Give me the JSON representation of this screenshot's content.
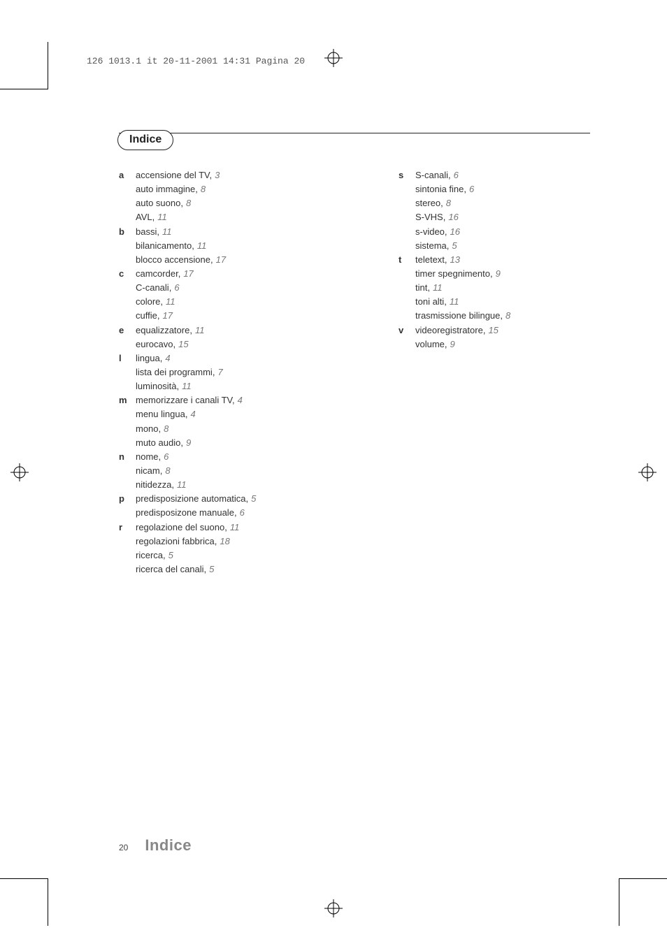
{
  "meta_header": "126 1013.1 it  20-11-2001 14:31  Pagina 20",
  "title": "Indice",
  "footer": {
    "page_number": "20",
    "section": "Indice"
  },
  "index": {
    "left": [
      {
        "letter": "a",
        "entries": [
          {
            "term": "accensione del TV",
            "page": "3"
          },
          {
            "term": "auto immagine",
            "page": "8"
          },
          {
            "term": "auto suono",
            "page": "8"
          },
          {
            "term": "AVL",
            "page": "11"
          }
        ]
      },
      {
        "letter": "b",
        "entries": [
          {
            "term": "bassi",
            "page": "11"
          },
          {
            "term": "bilanicamento",
            "page": "11"
          },
          {
            "term": "blocco accensione",
            "page": "17"
          }
        ]
      },
      {
        "letter": "c",
        "entries": [
          {
            "term": "camcorder",
            "page": "17"
          },
          {
            "term": "C-canali",
            "page": "6"
          },
          {
            "term": "colore",
            "page": "11"
          },
          {
            "term": "cuffie",
            "page": "17"
          }
        ]
      },
      {
        "letter": "e",
        "entries": [
          {
            "term": "equalizzatore",
            "page": "11"
          },
          {
            "term": "eurocavo",
            "page": "15"
          }
        ]
      },
      {
        "letter": "l",
        "entries": [
          {
            "term": "lingua",
            "page": "4"
          },
          {
            "term": "lista dei programmi",
            "page": "7"
          },
          {
            "term": "luminosità",
            "page": "11"
          }
        ]
      },
      {
        "letter": "m",
        "entries": [
          {
            "term": "memorizzare i canali TV",
            "page": "4"
          },
          {
            "term": "menu lingua",
            "page": "4"
          },
          {
            "term": "mono",
            "page": "8"
          },
          {
            "term": "muto audio",
            "page": "9"
          }
        ]
      },
      {
        "letter": "n",
        "entries": [
          {
            "term": "nome",
            "page": "6"
          },
          {
            "term": "nicam",
            "page": "8"
          },
          {
            "term": "nitidezza",
            "page": "11"
          }
        ]
      },
      {
        "letter": "p",
        "entries": [
          {
            "term": "predisposizione automatica",
            "page": "5"
          },
          {
            "term": "predisposizone manuale",
            "page": "6"
          }
        ]
      },
      {
        "letter": "r",
        "entries": [
          {
            "term": "regolazione del suono",
            "page": "11"
          },
          {
            "term": "regolazioni fabbrica",
            "page": "18"
          },
          {
            "term": "ricerca",
            "page": "5"
          },
          {
            "term": "ricerca del canali",
            "page": "5"
          }
        ]
      }
    ],
    "right": [
      {
        "letter": "s",
        "entries": [
          {
            "term": "S-canali",
            "page": "6"
          },
          {
            "term": "sintonia fine",
            "page": "6"
          },
          {
            "term": "stereo",
            "page": "8"
          },
          {
            "term": "S-VHS",
            "page": "16"
          },
          {
            "term": "s-video",
            "page": "16"
          },
          {
            "term": "sistema",
            "page": "5"
          }
        ]
      },
      {
        "letter": "t",
        "entries": [
          {
            "term": "teletext",
            "page": "13"
          },
          {
            "term": "timer spegnimento",
            "page": "9"
          },
          {
            "term": "tint",
            "page": "11"
          },
          {
            "term": "toni alti",
            "page": "11"
          },
          {
            "term": "trasmissione bilingue",
            "page": "8"
          }
        ]
      },
      {
        "letter": "v",
        "entries": [
          {
            "term": "videoregistratore",
            "page": "15"
          },
          {
            "term": "volume",
            "page": "9"
          }
        ]
      }
    ]
  }
}
